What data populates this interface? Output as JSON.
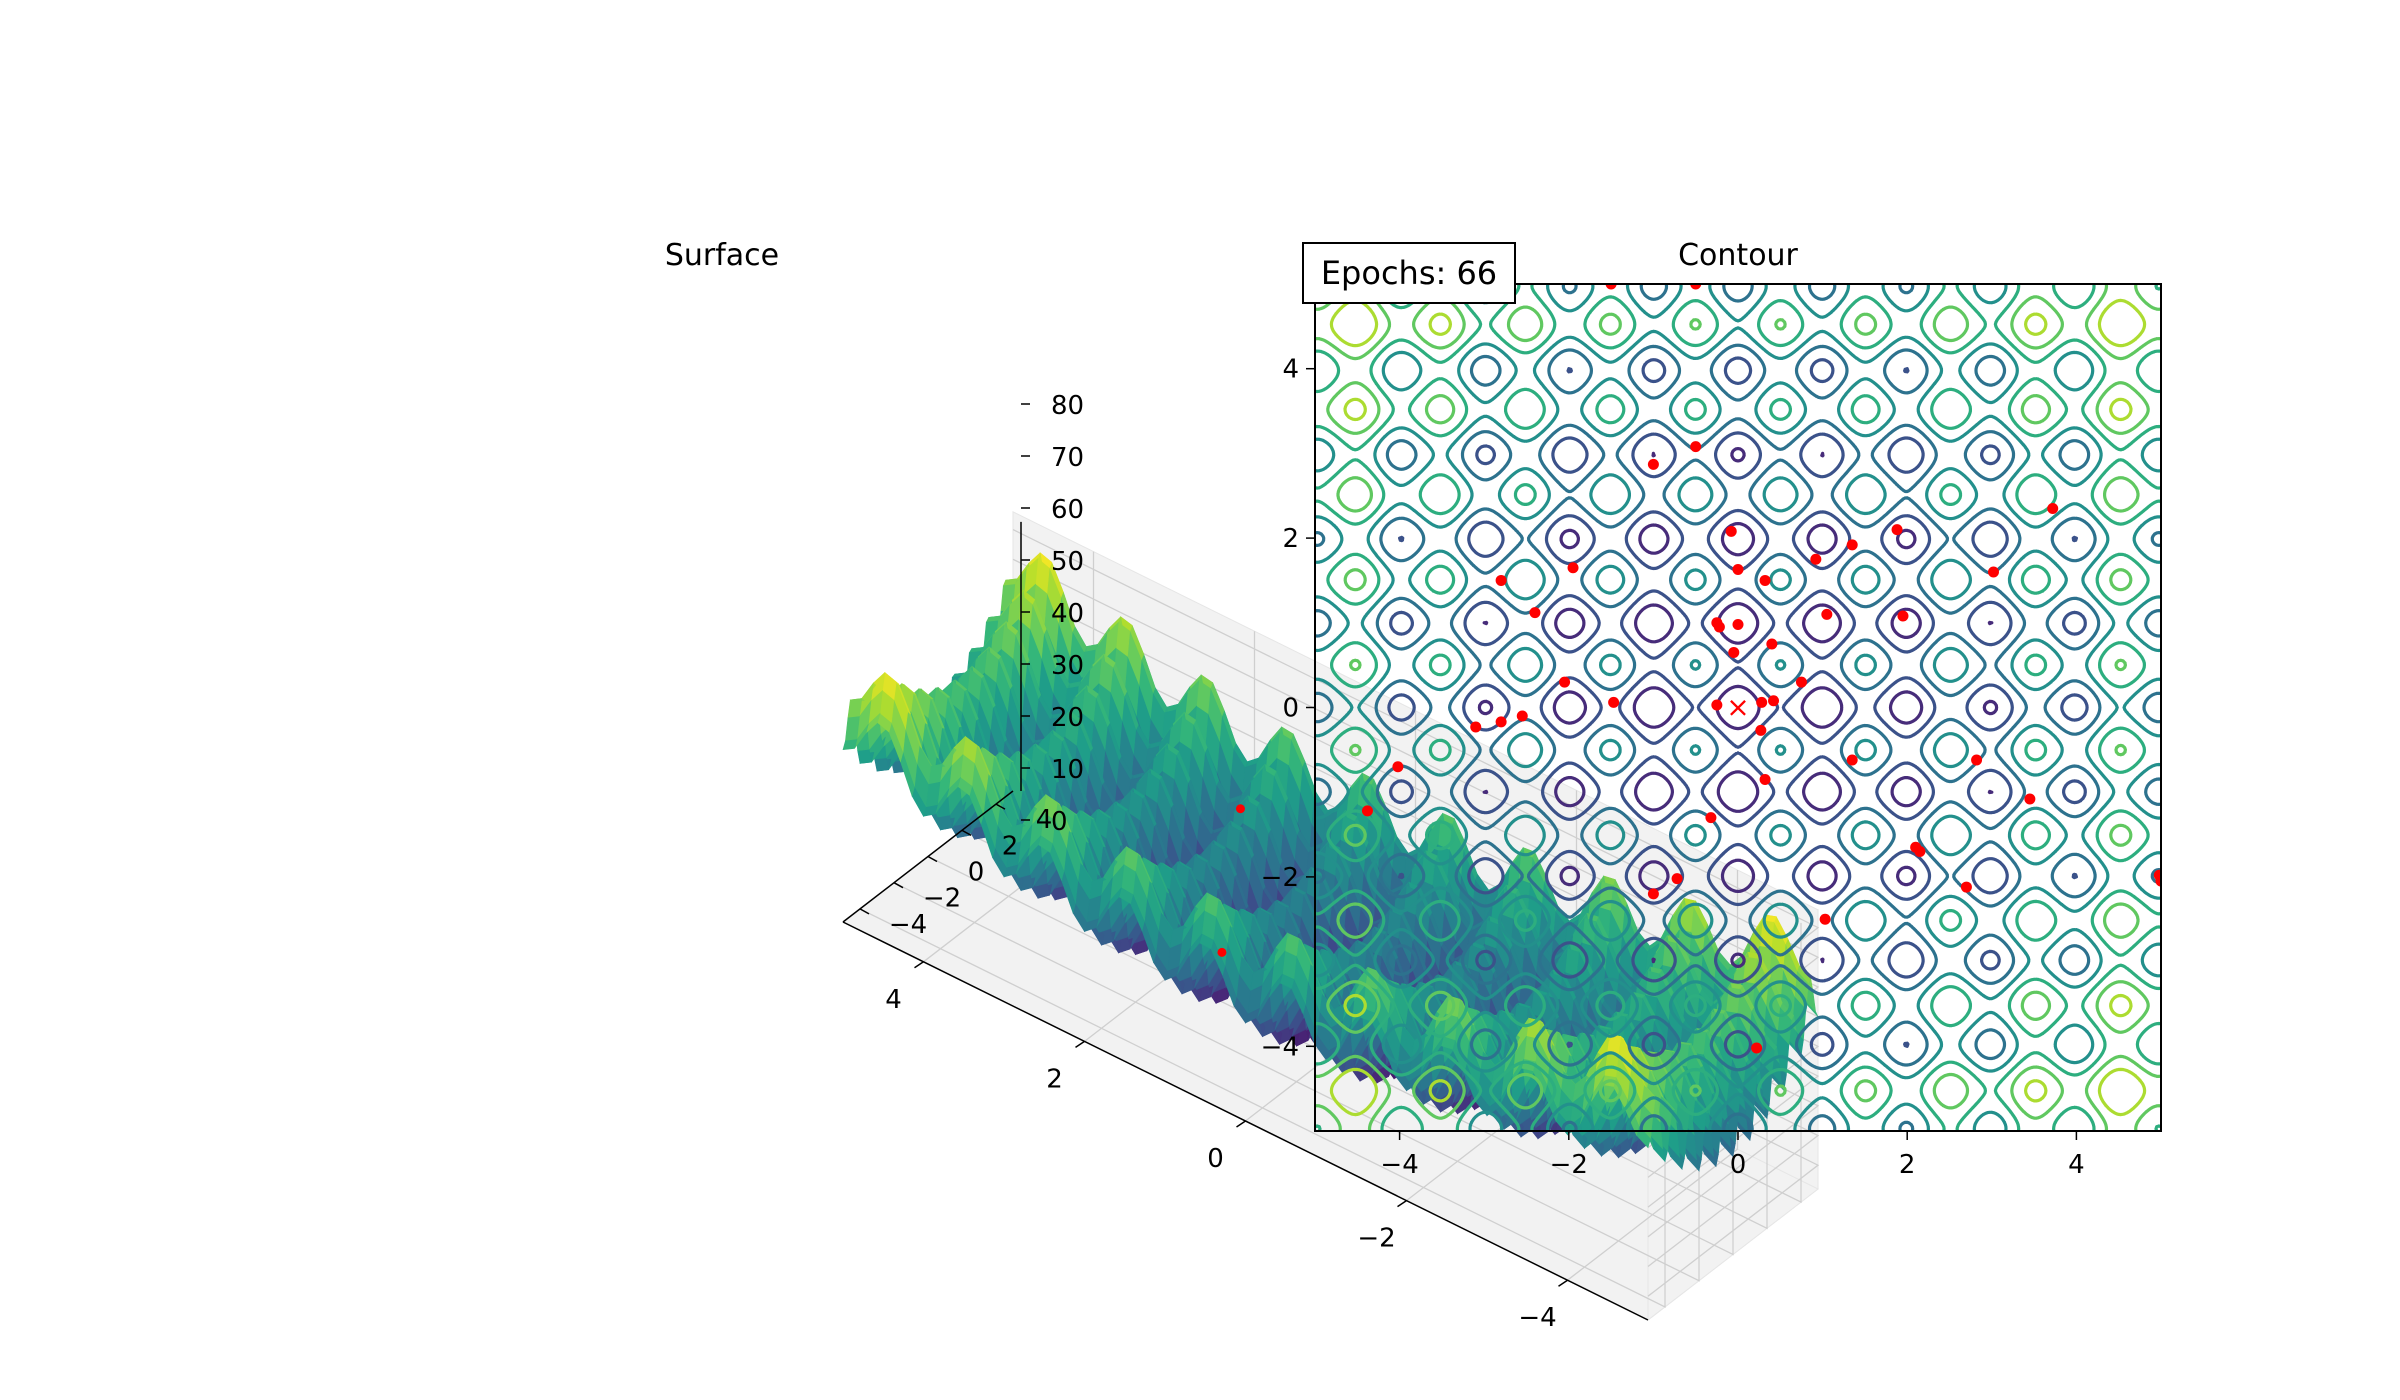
{
  "figure": {
    "epochs_label": "Epochs: 66"
  },
  "chart_data": [
    {
      "type": "surface3d",
      "title": "Surface",
      "function": "rastrigin",
      "function_params": {
        "A": 10,
        "dims": 2
      },
      "colormap": "viridis",
      "xlim": [
        -5,
        5
      ],
      "ylim": [
        -5,
        5
      ],
      "zlim": [
        0,
        80
      ],
      "x_ticks": [
        -4,
        -2,
        0,
        2,
        4
      ],
      "x_tick_labels": [
        "−4",
        "−2",
        "0",
        "2",
        "4"
      ],
      "y_ticks": [
        -4,
        -2,
        0,
        2,
        4
      ],
      "y_tick_labels": [
        "−4",
        "−2",
        "0",
        "2",
        "4"
      ],
      "z_ticks": [
        0,
        10,
        20,
        30,
        40,
        50,
        60,
        70,
        80
      ],
      "z_tick_labels": [
        "0",
        "10",
        "20",
        "30",
        "40",
        "50",
        "60",
        "70",
        "80"
      ],
      "grid": true,
      "points_visible": [
        [
          1.9,
          3.7
        ],
        [
          1.0,
          -1.65
        ]
      ],
      "point_color": "#ff0000"
    },
    {
      "type": "contour",
      "title": "Contour",
      "function": "rastrigin",
      "colormap": "viridis",
      "xlim": [
        -5,
        5
      ],
      "ylim": [
        -5,
        5
      ],
      "x_ticks": [
        -4,
        -2,
        0,
        2,
        4
      ],
      "x_tick_labels": [
        "−4",
        "−2",
        "0",
        "2",
        "4"
      ],
      "y_ticks": [
        -4,
        -2,
        0,
        2,
        4
      ],
      "y_tick_labels": [
        "−4",
        "−2",
        "0",
        "2",
        "4"
      ],
      "levels": [
        10,
        20,
        30,
        40,
        50,
        60,
        70
      ],
      "minimum_marker": {
        "x": 0,
        "y": 0,
        "symbol": "×",
        "color": "#ff0000"
      },
      "point_color": "#ff0000",
      "points": [
        [
          -1.5,
          5.0
        ],
        [
          -0.5,
          5.0
        ],
        [
          -0.5,
          3.08
        ],
        [
          -1.0,
          2.87
        ],
        [
          -0.08,
          2.08
        ],
        [
          3.72,
          2.35
        ],
        [
          1.88,
          2.1
        ],
        [
          1.35,
          1.92
        ],
        [
          0.92,
          1.75
        ],
        [
          0.0,
          1.63
        ],
        [
          0.32,
          1.5
        ],
        [
          -2.8,
          1.5
        ],
        [
          -1.95,
          1.65
        ],
        [
          3.02,
          1.6
        ],
        [
          -2.4,
          1.12
        ],
        [
          1.05,
          1.1
        ],
        [
          1.95,
          1.08
        ],
        [
          -0.25,
          1.0
        ],
        [
          0.0,
          0.98
        ],
        [
          -0.22,
          0.95
        ],
        [
          -0.05,
          0.65
        ],
        [
          0.4,
          0.75
        ],
        [
          0.75,
          0.3
        ],
        [
          -2.05,
          0.3
        ],
        [
          -1.47,
          0.06
        ],
        [
          -0.25,
          0.03
        ],
        [
          0.28,
          0.06
        ],
        [
          0.42,
          0.08
        ],
        [
          -2.55,
          -0.1
        ],
        [
          -2.8,
          -0.17
        ],
        [
          -3.1,
          -0.23
        ],
        [
          0.27,
          -0.27
        ],
        [
          -4.02,
          -0.7
        ],
        [
          1.35,
          -0.62
        ],
        [
          2.82,
          -0.62
        ],
        [
          0.32,
          -0.85
        ],
        [
          3.45,
          -1.08
        ],
        [
          -4.38,
          -1.22
        ],
        [
          -0.32,
          -1.3
        ],
        [
          2.1,
          -1.65
        ],
        [
          2.15,
          -1.7
        ],
        [
          4.98,
          -1.98
        ],
        [
          5.0,
          -2.05
        ],
        [
          -0.72,
          -2.02
        ],
        [
          -1.0,
          -2.2
        ],
        [
          2.7,
          -2.12
        ],
        [
          1.03,
          -2.5
        ],
        [
          0.22,
          -4.02
        ]
      ]
    }
  ]
}
